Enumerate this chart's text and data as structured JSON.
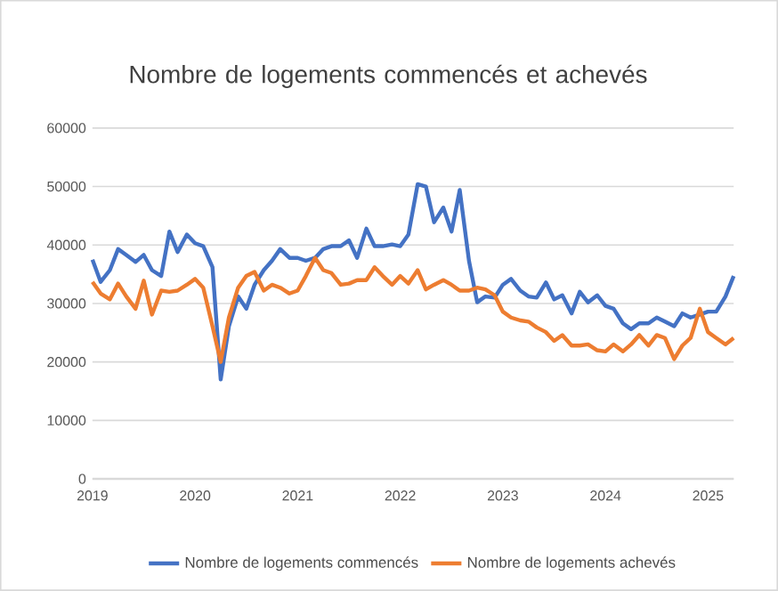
{
  "chart_data": {
    "type": "line",
    "title": "Nombre de logements commencés et achevés",
    "x": [
      "2019-01",
      "2019-02",
      "2019-03",
      "2019-04",
      "2019-05",
      "2019-06",
      "2019-07",
      "2019-08",
      "2019-09",
      "2019-10",
      "2019-11",
      "2019-12",
      "2020-01",
      "2020-02",
      "2020-03",
      "2020-04",
      "2020-05",
      "2020-06",
      "2020-07",
      "2020-08",
      "2020-09",
      "2020-10",
      "2020-11",
      "2020-12",
      "2021-01",
      "2021-02",
      "2021-03",
      "2021-04",
      "2021-05",
      "2021-06",
      "2021-07",
      "2021-08",
      "2021-09",
      "2021-10",
      "2021-11",
      "2021-12",
      "2022-01",
      "2022-02",
      "2022-03",
      "2022-04",
      "2022-05",
      "2022-06",
      "2022-07",
      "2022-08",
      "2022-09",
      "2022-10",
      "2022-11",
      "2022-12",
      "2023-01",
      "2023-02",
      "2023-03",
      "2023-04",
      "2023-05",
      "2023-06",
      "2023-07",
      "2023-08",
      "2023-09",
      "2023-10",
      "2023-11",
      "2023-12",
      "2024-01",
      "2024-02",
      "2024-03",
      "2024-04",
      "2024-05",
      "2024-06",
      "2024-07",
      "2024-08",
      "2024-09",
      "2024-10",
      "2024-11",
      "2024-12",
      "2025-01",
      "2025-02",
      "2025-03",
      "2025-04"
    ],
    "series": [
      {
        "name": "Nombre de logements commencés",
        "color": "#4472c4",
        "values": [
          37500,
          33700,
          35700,
          39300,
          38300,
          37100,
          38300,
          35700,
          34700,
          42300,
          38800,
          41800,
          40300,
          39800,
          36200,
          17000,
          26100,
          31200,
          29100,
          33200,
          35700,
          37300,
          39300,
          37800,
          37800,
          37300,
          37800,
          39300,
          39800,
          39800,
          40800,
          37800,
          42800,
          39800,
          39800,
          40100,
          39800,
          41800,
          50400,
          50000,
          43900,
          46400,
          42300,
          49400,
          37300,
          30200,
          31200,
          31000,
          33200,
          34200,
          32200,
          31200,
          31000,
          33600,
          30700,
          31400,
          28300,
          32000,
          30200,
          31400,
          29600,
          29100,
          26600,
          25600,
          26600,
          26600,
          27600,
          26900,
          26100,
          28300,
          27600,
          28100,
          28600,
          28600,
          31200,
          34700
        ]
      },
      {
        "name": "Nombre de logements achevés",
        "color": "#ed7d31",
        "values": [
          33700,
          31700,
          30700,
          33400,
          31200,
          29100,
          33900,
          28100,
          32200,
          32000,
          32200,
          33200,
          34200,
          32700,
          26100,
          20000,
          27600,
          32700,
          34700,
          35400,
          32200,
          33200,
          32700,
          31700,
          32200,
          34700,
          37800,
          35700,
          35200,
          33200,
          33400,
          34000,
          34000,
          36200,
          34700,
          33200,
          34700,
          33400,
          35700,
          32400,
          33200,
          34000,
          33200,
          32200,
          32200,
          32700,
          32400,
          31400,
          28600,
          27600,
          27100,
          26900,
          25900,
          25100,
          23600,
          24600,
          22800,
          22800,
          23000,
          22000,
          21800,
          23000,
          21800,
          23000,
          24600,
          22800,
          24600,
          24100,
          20500,
          22800,
          24100,
          29100,
          25100,
          24100,
          23000,
          24100
        ]
      }
    ],
    "xlim": [
      "2019-01",
      "2025-04"
    ],
    "xticks": [
      "2019",
      "2020",
      "2021",
      "2022",
      "2023",
      "2024",
      "2025"
    ],
    "ylim": [
      0,
      60000
    ],
    "yticks": [
      0,
      10000,
      20000,
      30000,
      40000,
      50000,
      60000
    ],
    "grid": "y",
    "legend": "bottom"
  }
}
